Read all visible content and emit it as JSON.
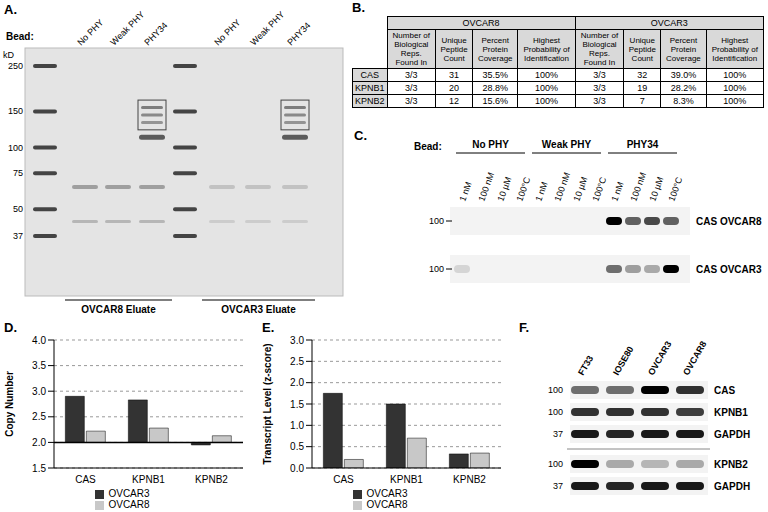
{
  "panel_labels": [
    "A.",
    "B.",
    "C.",
    "D.",
    "E.",
    "F."
  ],
  "gel": {
    "bead_label": "Bead:",
    "lanes": [
      "No PHY",
      "Weak PHY",
      "PHY34"
    ],
    "marker_unit": "kD",
    "markers": [
      250,
      150,
      100,
      75,
      50,
      37
    ],
    "eluates": [
      "OVCAR8 Eluate",
      "OVCAR3 Eluate"
    ]
  },
  "table": {
    "groups": [
      "OVCAR8",
      "OVCAR3"
    ],
    "columns": [
      "Number of Biological Reps. Found In",
      "Unique Peptide Count",
      "Percent Protein Coverage",
      "Highest Probability of Identification"
    ],
    "rows": [
      [
        "CAS",
        "3/3",
        "31",
        "35.5%",
        "100%",
        "3/3",
        "32",
        "39.0%",
        "100%"
      ],
      [
        "KPNB1",
        "3/3",
        "20",
        "28.8%",
        "100%",
        "3/3",
        "19",
        "28.2%",
        "100%"
      ],
      [
        "KPNB2",
        "3/3",
        "12",
        "15.6%",
        "100%",
        "3/3",
        "7",
        "8.3%",
        "100%"
      ]
    ]
  },
  "blot_C": {
    "bead_label": "Bead:",
    "groups": [
      "No PHY",
      "Weak PHY",
      "PHY34"
    ],
    "lanes": [
      "1 nM",
      "100 nM",
      "10 µM",
      "100°C"
    ],
    "rows": [
      {
        "marker": 100,
        "label": "CAS OVCAR8"
      },
      {
        "marker": 100,
        "label": "CAS OVCAR3"
      }
    ]
  },
  "chart_data": [
    {
      "type": "bar",
      "y_label": "Copy Number",
      "categories": [
        "CAS",
        "KPNB1",
        "KPNB2"
      ],
      "series": [
        {
          "name": "OVCAR3",
          "color": "#333333",
          "values": [
            2.9,
            2.83,
            1.95
          ]
        },
        {
          "name": "OVCAR8",
          "color": "#c8c8c8",
          "values": [
            2.22,
            2.28,
            2.13
          ]
        }
      ],
      "baseline": 2,
      "ylim": [
        1.5,
        4
      ],
      "yticks": [
        1.5,
        {
          "value": 2,
          "label": "2.0"
        },
        2.5,
        {
          "value": 3,
          "label": "3.0"
        },
        3.5,
        {
          "value": 4,
          "label": "4.0"
        }
      ],
      "grid": true,
      "legend": "bottom"
    },
    {
      "type": "bar",
      "y_label": "Transcript Level (z-score)",
      "categories": [
        "CAS",
        "KPNB1",
        "KPNB2"
      ],
      "series": [
        {
          "name": "OVCAR3",
          "color": "#333333",
          "values": [
            1.75,
            1.5,
            0.33
          ]
        },
        {
          "name": "OVCAR8",
          "color": "#c8c8c8",
          "values": [
            0.2,
            0.7,
            0.35
          ]
        }
      ],
      "ylim": [
        0,
        3
      ],
      "yticks": [
        {
          "value": 0,
          "label": "0.0"
        },
        0.5,
        {
          "value": 1,
          "label": "1.0"
        },
        1.5,
        {
          "value": 2,
          "label": "2.0"
        },
        2.5,
        {
          "value": 3,
          "label": "3.0"
        }
      ],
      "grid": true,
      "legend": "bottom"
    }
  ],
  "blot_F": {
    "lanes": [
      "FT33",
      "IOSE80",
      "OVCAR3",
      "OVCAR8"
    ],
    "rows": [
      {
        "marker": 100,
        "label": "CAS"
      },
      {
        "marker": 100,
        "label": "KPNB1"
      },
      {
        "marker": 37,
        "label": "GAPDH"
      },
      {
        "marker": 100,
        "label": "KPNB2"
      },
      {
        "marker": 37,
        "label": "GAPDH"
      }
    ]
  }
}
